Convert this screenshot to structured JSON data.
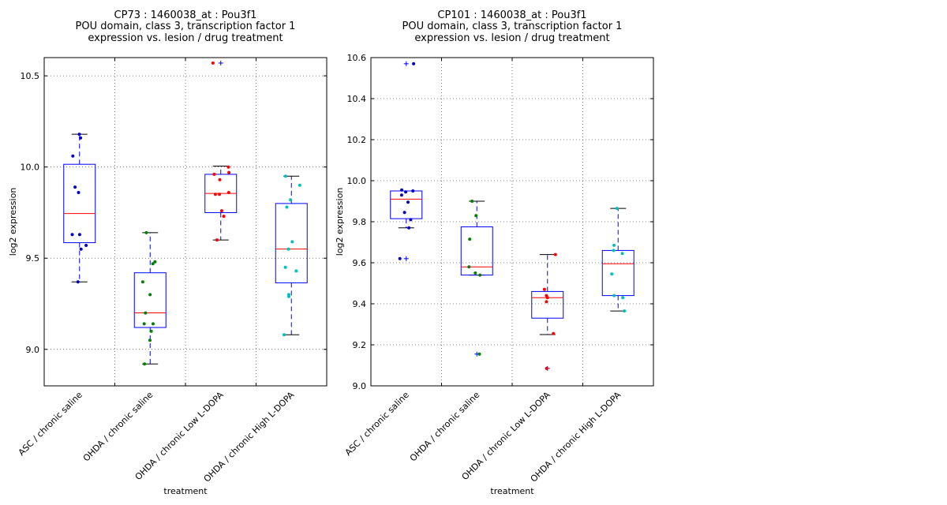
{
  "charts": [
    {
      "title_lines": [
        "CP73 : 1460038_at : Pou3f1",
        "POU domain, class 3, transcription factor 1",
        "expression vs. lesion / drug treatment"
      ],
      "chart_data": {
        "type": "box",
        "xlabel": "treatment",
        "ylabel": "log2 expression",
        "ylim": [
          8.8,
          10.6
        ],
        "yticks": [
          9.0,
          9.5,
          10.0,
          10.5
        ],
        "ytick_labels": [
          "9.0",
          "9.5",
          "10.0",
          "10.5"
        ],
        "grid": true,
        "categories": [
          "ASC / chronic saline",
          "OHDA / chronic saline",
          "OHDA / chronic Low L-DOPA",
          "OHDA / chronic High L-DOPA"
        ],
        "colors": [
          "#0000cc",
          "#008000",
          "#ff0000",
          "#00bfbf"
        ],
        "boxes": [
          {
            "whislo": 9.37,
            "q1": 9.585,
            "med": 9.745,
            "q3": 10.015,
            "whishi": 10.18,
            "fliers": []
          },
          {
            "whislo": 8.92,
            "q1": 9.12,
            "med": 9.2,
            "q3": 9.42,
            "whishi": 9.64,
            "fliers": []
          },
          {
            "whislo": 9.6,
            "q1": 9.75,
            "med": 9.855,
            "q3": 9.96,
            "whishi": 10.005,
            "fliers": [
              10.57
            ]
          },
          {
            "whislo": 9.08,
            "q1": 9.365,
            "med": 9.55,
            "q3": 9.8,
            "whishi": 9.95,
            "fliers": []
          }
        ],
        "points": [
          [
            10.18,
            10.16,
            10.06,
            9.89,
            9.86,
            9.63,
            9.63,
            9.57,
            9.55,
            9.37
          ],
          [
            9.64,
            9.48,
            9.47,
            9.37,
            9.3,
            9.2,
            9.14,
            9.14,
            9.1,
            9.05,
            8.92
          ],
          [
            10.57,
            10.0,
            9.97,
            9.96,
            9.93,
            9.86,
            9.85,
            9.85,
            9.76,
            9.73,
            9.6
          ],
          [
            9.95,
            9.9,
            9.82,
            9.78,
            9.59,
            9.55,
            9.45,
            9.43,
            9.3,
            9.29,
            9.08
          ]
        ]
      }
    },
    {
      "title_lines": [
        "CP101 : 1460038_at : Pou3f1",
        "POU domain, class 3, transcription factor 1",
        "expression vs. lesion / drug treatment"
      ],
      "chart_data": {
        "type": "box",
        "xlabel": "treatment",
        "ylabel": "log2 expression",
        "ylim": [
          9.0,
          10.6
        ],
        "yticks": [
          9.0,
          9.2,
          9.4,
          9.6,
          9.8,
          10.0,
          10.2,
          10.4,
          10.6
        ],
        "ytick_labels": [
          "9.0",
          "9.2",
          "9.4",
          "9.6",
          "9.8",
          "10.0",
          "10.2",
          "10.4",
          "10.6"
        ],
        "grid": true,
        "categories": [
          "ASC / chronic saline",
          "OHDA / chronic saline",
          "OHDA / chronic Low L-DOPA",
          "OHDA / chronic High L-DOPA"
        ],
        "colors": [
          "#0000cc",
          "#008000",
          "#ff0000",
          "#00bfbf"
        ],
        "boxes": [
          {
            "whislo": 9.77,
            "q1": 9.815,
            "med": 9.91,
            "q3": 9.95,
            "whishi": 9.95,
            "fliers": [
              10.57,
              9.62
            ]
          },
          {
            "whislo": 9.54,
            "q1": 9.54,
            "med": 9.58,
            "q3": 9.775,
            "whishi": 9.9,
            "fliers": [
              9.155
            ]
          },
          {
            "whislo": 9.25,
            "q1": 9.33,
            "med": 9.43,
            "q3": 9.46,
            "whishi": 9.64,
            "fliers": [
              9.085
            ]
          },
          {
            "whislo": 9.365,
            "q1": 9.44,
            "med": 9.595,
            "q3": 9.66,
            "whishi": 9.865,
            "fliers": []
          }
        ],
        "points": [
          [
            10.57,
            9.955,
            9.95,
            9.945,
            9.93,
            9.895,
            9.845,
            9.81,
            9.77,
            9.62
          ],
          [
            9.9,
            9.83,
            9.715,
            9.58,
            9.55,
            9.54,
            9.155
          ],
          [
            9.64,
            9.47,
            9.44,
            9.43,
            9.41,
            9.255,
            9.085
          ],
          [
            9.865,
            9.685,
            9.66,
            9.645,
            9.545,
            9.44,
            9.43,
            9.365
          ]
        ]
      }
    }
  ]
}
